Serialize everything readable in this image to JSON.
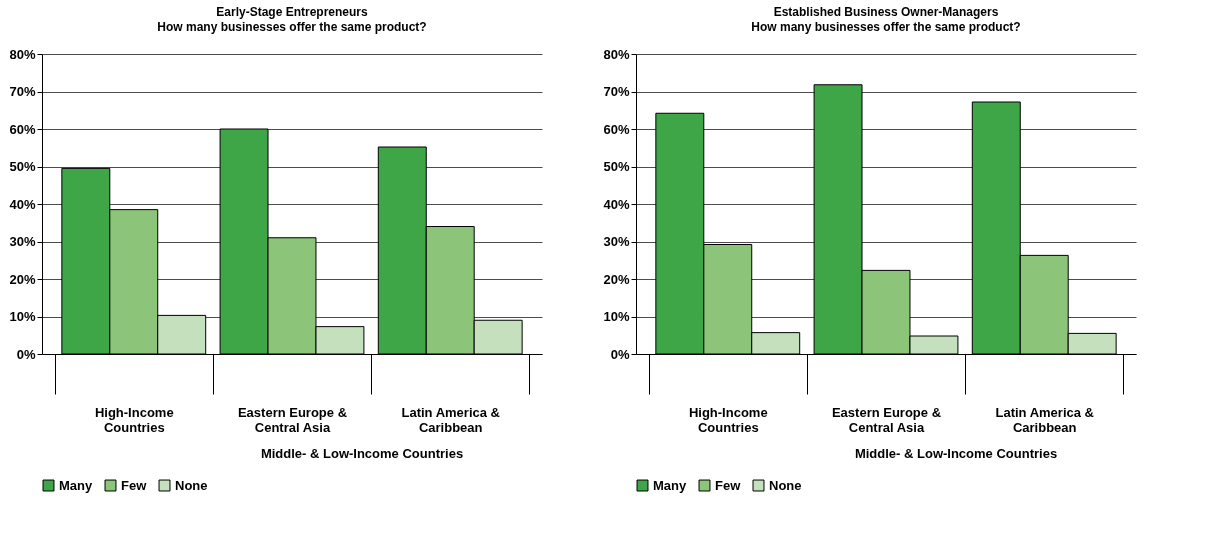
{
  "chart_data": [
    {
      "type": "bar",
      "title": "Early-Stage Entrepreneurs",
      "subtitle": "How many businesses offer the same product?",
      "categories": [
        "High-Income Countries",
        "Eastern Europe & Central Asia",
        "Latin America & Caribbean"
      ],
      "series": [
        {
          "name": "Many",
          "color": "#3fa648",
          "values": [
            49.5,
            60,
            55.2
          ]
        },
        {
          "name": "Few",
          "color": "#8cc47a",
          "values": [
            38.5,
            31,
            34
          ]
        },
        {
          "name": "None",
          "color": "#c5e0bc",
          "values": [
            10.3,
            7.3,
            9
          ]
        }
      ],
      "ylim": [
        0,
        80
      ],
      "yticks": [
        {
          "value": 0,
          "label": "0%"
        },
        {
          "value": 10,
          "label": "10%"
        },
        {
          "value": 20,
          "label": "20%"
        },
        {
          "value": 30,
          "label": "30%"
        },
        {
          "value": 40,
          "label": "40%"
        },
        {
          "value": 50,
          "label": "50%"
        },
        {
          "value": 60,
          "label": "60%"
        },
        {
          "value": 70,
          "label": "70%"
        },
        {
          "value": 80,
          "label": "80%"
        }
      ],
      "grid": "y",
      "legend": "bottom",
      "annotations": [
        "Middle- & Low-Income Countries"
      ]
    },
    {
      "type": "bar",
      "title": "Established Business Owner-Managers",
      "subtitle": "How many businesses offer the same product?",
      "categories": [
        "High-Income Countries",
        "Eastern Europe & Central Asia",
        "Latin America & Caribbean"
      ],
      "series": [
        {
          "name": "Many",
          "color": "#3fa648",
          "values": [
            64.2,
            71.8,
            67.2
          ]
        },
        {
          "name": "Few",
          "color": "#8cc47a",
          "values": [
            29.2,
            22.3,
            26.3
          ]
        },
        {
          "name": "None",
          "color": "#c5e0bc",
          "values": [
            5.7,
            4.8,
            5.5
          ]
        }
      ],
      "ylim": [
        0,
        80
      ],
      "yticks": [
        {
          "value": 0,
          "label": "0%"
        },
        {
          "value": 10,
          "label": "10%"
        },
        {
          "value": 20,
          "label": "20%"
        },
        {
          "value": 30,
          "label": "30%"
        },
        {
          "value": 40,
          "label": "40%"
        },
        {
          "value": 50,
          "label": "50%"
        },
        {
          "value": 60,
          "label": "60%"
        },
        {
          "value": 70,
          "label": "70%"
        },
        {
          "value": 80,
          "label": "80%"
        }
      ],
      "grid": "y",
      "legend": "bottom",
      "annotations": [
        "Middle- & Low-Income Countries"
      ]
    }
  ]
}
